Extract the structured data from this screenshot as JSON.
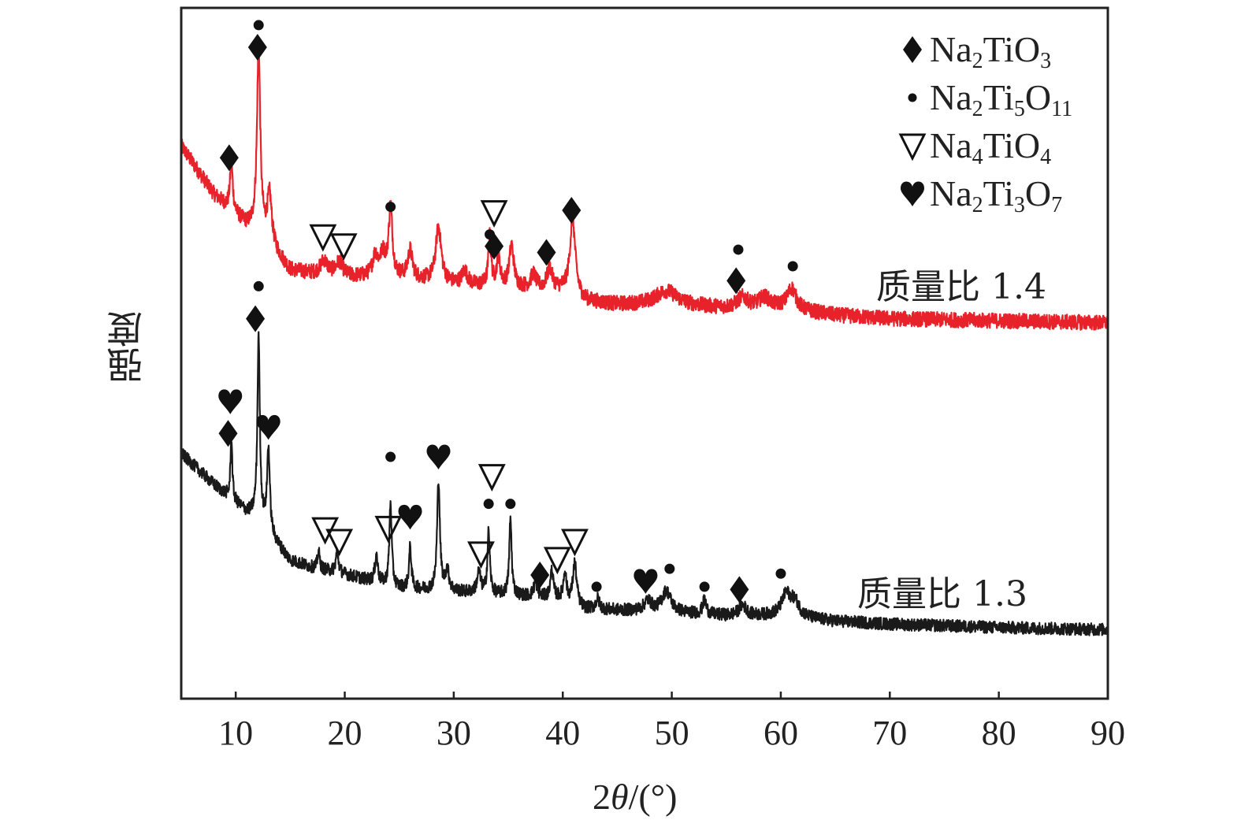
{
  "chart_data": {
    "type": "line",
    "title": "",
    "xlabel_prefix": "2",
    "xlabel_theta": "θ",
    "xlabel_suffix": "/(°)",
    "ylabel": "强度",
    "xlim": [
      5,
      90
    ],
    "ylim": [
      0,
      100
    ],
    "x_ticks": [
      10,
      20,
      30,
      40,
      50,
      60,
      70,
      80,
      90
    ],
    "y_ticks": [],
    "grid": false,
    "legend_placement": "top-right",
    "legend": [
      {
        "symbol": "diamond",
        "parts": [
          "Na",
          "2",
          "TiO",
          "3"
        ]
      },
      {
        "symbol": "dot",
        "parts": [
          "Na",
          "2",
          "Ti",
          "5",
          "O",
          "11"
        ]
      },
      {
        "symbol": "triangle-down-open",
        "parts": [
          "Na",
          "4",
          "TiO",
          "4"
        ]
      },
      {
        "symbol": "heart",
        "parts": [
          "Na",
          "2",
          "Ti",
          "3",
          "O",
          "7"
        ]
      }
    ],
    "series": [
      {
        "name": "质量比 1.4",
        "color": "#e8222a",
        "baseline": [
          [
            5,
            80
          ],
          [
            8,
            73
          ],
          [
            11,
            68.5
          ],
          [
            12,
            68
          ],
          [
            13.5,
            65
          ],
          [
            15,
            62
          ],
          [
            17,
            61.5
          ],
          [
            20,
            61
          ],
          [
            25,
            61
          ],
          [
            30,
            60
          ],
          [
            35,
            59.5
          ],
          [
            40,
            59
          ],
          [
            42,
            57.5
          ],
          [
            45,
            57
          ],
          [
            50,
            57
          ],
          [
            55,
            56.5
          ],
          [
            60,
            56.5
          ],
          [
            65,
            55.5
          ],
          [
            70,
            55
          ],
          [
            80,
            54.7
          ],
          [
            90,
            54.4
          ]
        ],
        "peaks": [
          [
            9.6,
            7,
            0.15
          ],
          [
            12.1,
            26,
            0.18
          ],
          [
            13.1,
            7,
            0.25
          ],
          [
            18.1,
            2,
            0.4
          ],
          [
            19.5,
            2,
            0.4
          ],
          [
            22.8,
            3,
            0.3
          ],
          [
            23.5,
            3,
            0.3
          ],
          [
            24.2,
            10,
            0.2
          ],
          [
            26,
            4,
            0.25
          ],
          [
            28.6,
            8,
            0.3
          ],
          [
            31,
            2,
            0.3
          ],
          [
            33.3,
            7,
            0.15
          ],
          [
            34.1,
            4,
            0.2
          ],
          [
            35.3,
            6,
            0.25
          ],
          [
            37.3,
            2,
            0.3
          ],
          [
            38.8,
            3,
            0.3
          ],
          [
            40.9,
            11,
            0.3
          ],
          [
            49.5,
            2,
            1.2
          ],
          [
            56.5,
            1.5,
            0.6
          ],
          [
            58.5,
            1.5,
            0.6
          ],
          [
            61,
            3,
            0.5
          ]
        ],
        "noise": 1.1,
        "markers": [
          {
            "symbol": "diamond",
            "x": 9.4,
            "y": 78.3
          },
          {
            "symbol": "dot",
            "x": 12.1,
            "y": 97.5
          },
          {
            "symbol": "diamond",
            "x": 12.0,
            "y": 94.3
          },
          {
            "symbol": "triangle-down-open",
            "x": 18.0,
            "y": 66.9
          },
          {
            "symbol": "triangle-down-open",
            "x": 19.9,
            "y": 65.6
          },
          {
            "symbol": "dot",
            "x": 24.2,
            "y": 71.2
          },
          {
            "symbol": "triangle-down-open",
            "x": 33.7,
            "y": 70.4
          },
          {
            "symbol": "dot",
            "x": 33.3,
            "y": 67.2
          },
          {
            "symbol": "diamond",
            "x": 33.7,
            "y": 65.5
          },
          {
            "symbol": "diamond",
            "x": 38.5,
            "y": 64.6
          },
          {
            "symbol": "diamond",
            "x": 40.8,
            "y": 70.7
          },
          {
            "symbol": "diamond",
            "x": 55.9,
            "y": 60.5
          },
          {
            "symbol": "dot",
            "x": 56.1,
            "y": 65.0
          },
          {
            "symbol": "dot",
            "x": 61.1,
            "y": 62.6
          }
        ]
      },
      {
        "name": "质量比 1.3",
        "color": "#1a1a1a",
        "baseline": [
          [
            5,
            35.5
          ],
          [
            8,
            31
          ],
          [
            11,
            27
          ],
          [
            12,
            26.5
          ],
          [
            13.5,
            23
          ],
          [
            15,
            20
          ],
          [
            17,
            19
          ],
          [
            20,
            18
          ],
          [
            25,
            16
          ],
          [
            30,
            15.5
          ],
          [
            35,
            15
          ],
          [
            37,
            14.8
          ],
          [
            40,
            14.5
          ],
          [
            42,
            13
          ],
          [
            45,
            12.8
          ],
          [
            50,
            12.5
          ],
          [
            55,
            12
          ],
          [
            60,
            12
          ],
          [
            65,
            11.2
          ],
          [
            70,
            10.8
          ],
          [
            80,
            10.3
          ],
          [
            90,
            10
          ]
        ],
        "peaks": [
          [
            9.6,
            9,
            0.1
          ],
          [
            12.1,
            26,
            0.13
          ],
          [
            13,
            12,
            0.15
          ],
          [
            17.6,
            2.5,
            0.12
          ],
          [
            19.3,
            3,
            0.15
          ],
          [
            22.9,
            4,
            0.15
          ],
          [
            24.2,
            12,
            0.13
          ],
          [
            26,
            6,
            0.13
          ],
          [
            28.6,
            16,
            0.15
          ],
          [
            29.4,
            3,
            0.2
          ],
          [
            32.3,
            3,
            0.2
          ],
          [
            33.2,
            9,
            0.13
          ],
          [
            35.2,
            11,
            0.13
          ],
          [
            37.5,
            2,
            0.2
          ],
          [
            39,
            4,
            0.15
          ],
          [
            40.2,
            4,
            0.15
          ],
          [
            41.1,
            6,
            0.2
          ],
          [
            43.2,
            1.5,
            0.2
          ],
          [
            47.8,
            1.5,
            0.4
          ],
          [
            49.5,
            3,
            0.5
          ],
          [
            53,
            2,
            0.2
          ],
          [
            56.5,
            1.5,
            0.4
          ],
          [
            60.5,
            3,
            0.5
          ],
          [
            61.3,
            2,
            0.5
          ]
        ],
        "noise": 0.9,
        "markers": [
          {
            "symbol": "heart",
            "x": 9.5,
            "y": 43.0
          },
          {
            "symbol": "diamond",
            "x": 9.3,
            "y": 38.4
          },
          {
            "symbol": "dot",
            "x": 12.1,
            "y": 59.7
          },
          {
            "symbol": "diamond",
            "x": 11.8,
            "y": 55.0
          },
          {
            "symbol": "heart",
            "x": 13.0,
            "y": 39.3
          },
          {
            "symbol": "triangle-down-open",
            "x": 18.2,
            "y": 24.5
          },
          {
            "symbol": "triangle-down-open",
            "x": 19.5,
            "y": 22.8
          },
          {
            "symbol": "dot",
            "x": 24.2,
            "y": 35.0
          },
          {
            "symbol": "triangle-down-open",
            "x": 24.0,
            "y": 24.7
          },
          {
            "symbol": "heart",
            "x": 26.0,
            "y": 26.3
          },
          {
            "symbol": "heart",
            "x": 28.6,
            "y": 35.0
          },
          {
            "symbol": "triangle-down-open",
            "x": 33.5,
            "y": 32.2
          },
          {
            "symbol": "dot",
            "x": 33.2,
            "y": 28.2
          },
          {
            "symbol": "dot",
            "x": 35.2,
            "y": 28.2
          },
          {
            "symbol": "triangle-down-open",
            "x": 32.5,
            "y": 21.0
          },
          {
            "symbol": "diamond",
            "x": 37.9,
            "y": 17.9
          },
          {
            "symbol": "triangle-down-open",
            "x": 39.5,
            "y": 20.2
          },
          {
            "symbol": "triangle-down-open",
            "x": 41.1,
            "y": 22.8
          },
          {
            "symbol": "dot",
            "x": 43.1,
            "y": 16.2
          },
          {
            "symbol": "heart",
            "x": 47.6,
            "y": 17.0
          },
          {
            "symbol": "dot",
            "x": 49.8,
            "y": 18.8
          },
          {
            "symbol": "dot",
            "x": 53.0,
            "y": 16.2
          },
          {
            "symbol": "diamond",
            "x": 56.2,
            "y": 15.8
          },
          {
            "symbol": "dot",
            "x": 60.0,
            "y": 18.1
          }
        ]
      }
    ]
  }
}
